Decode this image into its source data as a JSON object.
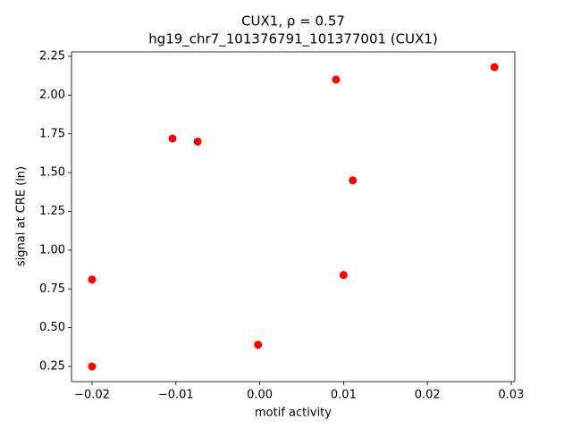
{
  "chart_data": {
    "type": "scatter",
    "title": "CUX1, ρ = 0.57",
    "subtitle": "hg19_chr7_101376791_101377001 (CUX1)",
    "x_label": "motif activity",
    "y_label": "signal at CRE (ln)",
    "color": "#ff0000",
    "x": [
      -0.02,
      -0.02,
      -0.0104,
      -0.0074,
      -0.0002,
      0.0091,
      0.01,
      0.0111,
      0.028
    ],
    "values": [
      0.81,
      0.25,
      1.72,
      1.7,
      0.39,
      2.1,
      0.84,
      1.45,
      2.18
    ],
    "xlim": [
      -0.02245,
      0.03043
    ],
    "ylim": [
      0.152,
      2.279
    ],
    "xticks": [
      {
        "value": -0.02,
        "label": "−0.02"
      },
      {
        "value": -0.01,
        "label": "−0.01"
      },
      {
        "value": 0,
        "label": "0.00"
      },
      0.01,
      0.02,
      0.03
    ],
    "yticks": [
      0.25,
      {
        "value": 0.5,
        "label": "0.50"
      },
      0.75,
      {
        "value": 1,
        "label": "1.00"
      },
      1.25,
      {
        "value": 1.5,
        "label": "1.50"
      },
      1.75,
      {
        "value": 2,
        "label": "2.00"
      },
      2.25
    ],
    "grid": false
  }
}
